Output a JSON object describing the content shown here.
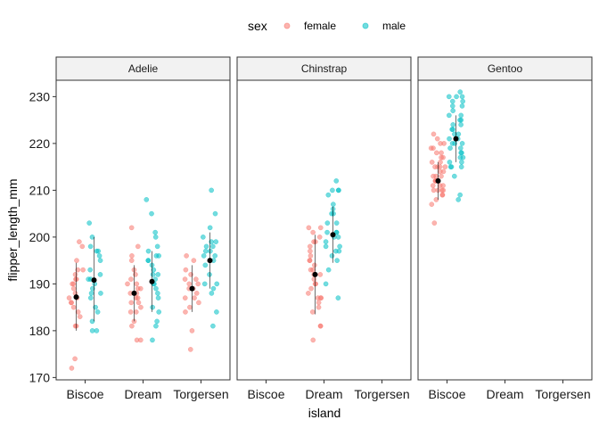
{
  "chart_data": {
    "type": "scatter",
    "xlabel": "island",
    "ylabel": "flipper_length_mm",
    "ylim": [
      169.5,
      233.5
    ],
    "yticks": [
      170,
      180,
      190,
      200,
      210,
      220,
      230
    ],
    "categories": [
      "Biscoe",
      "Dream",
      "Torgersen"
    ],
    "facets": [
      "Adelie",
      "Chinstrap",
      "Gentoo"
    ],
    "legend": {
      "title": "sex",
      "position": "top",
      "entries": [
        {
          "name": "female",
          "color": "#F8766D"
        },
        {
          "name": "male",
          "color": "#00BFC4"
        }
      ]
    },
    "grid": false,
    "summary_color": "#000000",
    "series": [
      {
        "facet": "Adelie",
        "island": "Biscoe",
        "sex": "female",
        "mean": 187.2,
        "sd_low": 180,
        "sd_high": 194.5,
        "values": [
          172,
          174,
          181,
          181,
          183,
          184,
          185,
          186,
          186,
          187,
          187,
          188,
          189,
          190,
          190,
          191,
          191,
          192,
          193,
          193,
          195,
          198,
          199
        ]
      },
      {
        "facet": "Adelie",
        "island": "Biscoe",
        "sex": "male",
        "mean": 190.8,
        "sd_low": 182,
        "sd_high": 200,
        "values": [
          180,
          180,
          182,
          184,
          185,
          187,
          188,
          188,
          189,
          190,
          191,
          191,
          192,
          193,
          195,
          196,
          197,
          197,
          198,
          200,
          203
        ]
      },
      {
        "facet": "Adelie",
        "island": "Dream",
        "sex": "female",
        "mean": 188,
        "sd_low": 182,
        "sd_high": 194,
        "values": [
          178,
          178,
          181,
          182,
          184,
          184,
          185,
          186,
          186,
          187,
          187,
          188,
          188,
          189,
          189,
          190,
          190,
          191,
          192,
          193,
          195,
          196,
          198,
          202
        ]
      },
      {
        "facet": "Adelie",
        "island": "Dream",
        "sex": "male",
        "mean": 190.5,
        "sd_low": 184,
        "sd_high": 197,
        "values": [
          178,
          181,
          182,
          184,
          185,
          187,
          188,
          189,
          190,
          190,
          191,
          192,
          192,
          193,
          194,
          195,
          195,
          196,
          196,
          197,
          198,
          200,
          201,
          205,
          208
        ]
      },
      {
        "facet": "Adelie",
        "island": "Torgersen",
        "sex": "female",
        "mean": 189,
        "sd_low": 184,
        "sd_high": 194,
        "values": [
          176,
          180,
          184,
          185,
          186,
          187,
          187,
          188,
          189,
          189,
          190,
          190,
          191,
          191,
          192,
          193,
          195,
          196
        ]
      },
      {
        "facet": "Adelie",
        "island": "Torgersen",
        "sex": "male",
        "mean": 195,
        "sd_low": 189,
        "sd_high": 201,
        "values": [
          181,
          184,
          188,
          189,
          190,
          190,
          192,
          194,
          195,
          196,
          196,
          197,
          197,
          198,
          198,
          199,
          199,
          200,
          202,
          205,
          210
        ]
      },
      {
        "facet": "Chinstrap",
        "island": "Dream",
        "sex": "female",
        "mean": 192,
        "sd_low": 183.5,
        "sd_high": 200.5,
        "values": [
          178,
          181,
          181,
          184,
          185,
          186,
          187,
          187,
          187,
          188,
          189,
          190,
          190,
          191,
          192,
          192,
          193,
          193,
          194,
          195,
          195,
          196,
          197,
          198,
          199,
          199,
          200,
          201,
          202,
          202
        ]
      },
      {
        "facet": "Chinstrap",
        "island": "Dream",
        "sex": "male",
        "mean": 200.5,
        "sd_low": 194.5,
        "sd_high": 206.5,
        "values": [
          187,
          190,
          193,
          195,
          196,
          197,
          197,
          198,
          198,
          199,
          200,
          200,
          201,
          201,
          201,
          203,
          203,
          205,
          205,
          206,
          207,
          209,
          210,
          210,
          210,
          212
        ]
      },
      {
        "facet": "Gentoo",
        "island": "Biscoe",
        "sex": "female",
        "mean": 212,
        "sd_low": 208,
        "sd_high": 216,
        "values": [
          203,
          207,
          208,
          209,
          209,
          210,
          210,
          210,
          210,
          211,
          211,
          211,
          212,
          212,
          212,
          213,
          213,
          213,
          214,
          214,
          215,
          215,
          215,
          215,
          216,
          216,
          217,
          217,
          218,
          218,
          219,
          219,
          220,
          220,
          221,
          222
        ]
      },
      {
        "facet": "Gentoo",
        "island": "Biscoe",
        "sex": "male",
        "mean": 221,
        "sd_low": 216,
        "sd_high": 226,
        "values": [
          208,
          209,
          213,
          215,
          215,
          215,
          216,
          216,
          217,
          217,
          218,
          218,
          219,
          219,
          220,
          220,
          220,
          221,
          221,
          222,
          222,
          223,
          223,
          224,
          224,
          225,
          225,
          226,
          226,
          227,
          228,
          228,
          229,
          229,
          230,
          230,
          230,
          231
        ]
      }
    ]
  }
}
